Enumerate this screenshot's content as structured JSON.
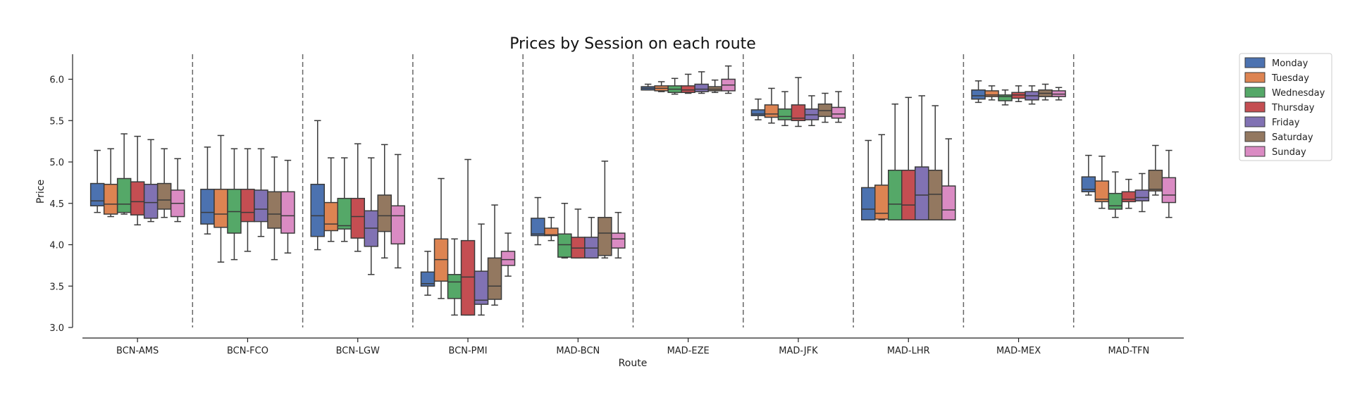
{
  "chart_data": {
    "type": "boxplot",
    "title": "Prices by Session on each route",
    "xlabel": "Route",
    "ylabel": "Price",
    "ylim": [
      3.0,
      6.25
    ],
    "yticks": [
      3.0,
      3.5,
      4.0,
      4.5,
      5.0,
      5.5,
      6.0
    ],
    "categories": [
      "BCN-AMS",
      "BCN-FCO",
      "BCN-LGW",
      "BCN-PMI",
      "MAD-BCN",
      "MAD-EZE",
      "MAD-JFK",
      "MAD-LHR",
      "MAD-MEX",
      "MAD-TFN"
    ],
    "grid": false,
    "legend": "outside-top-right",
    "separators": "dashed vertical lines between routes",
    "series": [
      {
        "name": "Monday",
        "color": "#4c72b0",
        "boxes": [
          {
            "whislo": 4.39,
            "q1": 4.47,
            "med": 4.53,
            "q3": 4.74,
            "whishi": 5.14
          },
          {
            "whislo": 4.13,
            "q1": 4.25,
            "med": 4.39,
            "q3": 4.67,
            "whishi": 5.18
          },
          {
            "whislo": 3.94,
            "q1": 4.1,
            "med": 4.35,
            "q3": 4.73,
            "whishi": 5.5
          },
          {
            "whislo": 3.39,
            "q1": 3.5,
            "med": 3.53,
            "q3": 3.67,
            "whishi": 3.92
          },
          {
            "whislo": 4.0,
            "q1": 4.11,
            "med": 4.13,
            "q3": 4.32,
            "whishi": 4.57
          },
          {
            "whislo": 5.87,
            "q1": 5.87,
            "med": 5.89,
            "q3": 5.91,
            "whishi": 5.94
          },
          {
            "whislo": 5.51,
            "q1": 5.56,
            "med": 5.58,
            "q3": 5.63,
            "whishi": 5.76
          },
          {
            "whislo": 4.3,
            "q1": 4.3,
            "med": 4.43,
            "q3": 4.69,
            "whishi": 5.26
          },
          {
            "whislo": 5.72,
            "q1": 5.76,
            "med": 5.8,
            "q3": 5.87,
            "whishi": 5.98
          },
          {
            "whislo": 4.6,
            "q1": 4.64,
            "med": 4.67,
            "q3": 4.82,
            "whishi": 5.08
          }
        ]
      },
      {
        "name": "Tuesday",
        "color": "#dd8452",
        "boxes": [
          {
            "whislo": 4.34,
            "q1": 4.37,
            "med": 4.49,
            "q3": 4.73,
            "whishi": 5.16
          },
          {
            "whislo": 3.79,
            "q1": 4.21,
            "med": 4.37,
            "q3": 4.67,
            "whishi": 5.32
          },
          {
            "whislo": 4.04,
            "q1": 4.17,
            "med": 4.25,
            "q3": 4.51,
            "whishi": 5.05
          },
          {
            "whislo": 3.35,
            "q1": 3.56,
            "med": 3.82,
            "q3": 4.07,
            "whishi": 4.8
          },
          {
            "whislo": 4.05,
            "q1": 4.11,
            "med": 4.12,
            "q3": 4.2,
            "whishi": 4.33
          },
          {
            "whislo": 5.85,
            "q1": 5.86,
            "med": 5.89,
            "q3": 5.92,
            "whishi": 5.97
          },
          {
            "whislo": 5.47,
            "q1": 5.54,
            "med": 5.58,
            "q3": 5.69,
            "whishi": 5.89
          },
          {
            "whislo": 4.3,
            "q1": 4.31,
            "med": 4.38,
            "q3": 4.72,
            "whishi": 5.33
          },
          {
            "whislo": 5.75,
            "q1": 5.79,
            "med": 5.81,
            "q3": 5.86,
            "whishi": 5.92
          },
          {
            "whislo": 4.44,
            "q1": 4.52,
            "med": 4.55,
            "q3": 4.77,
            "whishi": 5.07
          }
        ]
      },
      {
        "name": "Wednesday",
        "color": "#55a868",
        "boxes": [
          {
            "whislo": 4.37,
            "q1": 4.39,
            "med": 4.49,
            "q3": 4.8,
            "whishi": 5.34
          },
          {
            "whislo": 3.82,
            "q1": 4.14,
            "med": 4.4,
            "q3": 4.67,
            "whishi": 5.16
          },
          {
            "whislo": 4.04,
            "q1": 4.19,
            "med": 4.23,
            "q3": 4.56,
            "whishi": 5.05
          },
          {
            "whislo": 3.15,
            "q1": 3.35,
            "med": 3.55,
            "q3": 3.64,
            "whishi": 4.07
          },
          {
            "whislo": 3.84,
            "q1": 3.85,
            "med": 4.0,
            "q3": 4.13,
            "whishi": 4.5
          },
          {
            "whislo": 5.82,
            "q1": 5.84,
            "med": 5.88,
            "q3": 5.92,
            "whishi": 6.01
          },
          {
            "whislo": 5.44,
            "q1": 5.51,
            "med": 5.55,
            "q3": 5.64,
            "whishi": 5.85
          },
          {
            "whislo": 4.3,
            "q1": 4.3,
            "med": 4.49,
            "q3": 4.9,
            "whishi": 5.7
          },
          {
            "whislo": 5.69,
            "q1": 5.74,
            "med": 5.79,
            "q3": 5.81,
            "whishi": 5.87
          },
          {
            "whislo": 4.33,
            "q1": 4.43,
            "med": 4.47,
            "q3": 4.62,
            "whishi": 4.88
          }
        ]
      },
      {
        "name": "Thursday",
        "color": "#c44e52",
        "boxes": [
          {
            "whislo": 4.24,
            "q1": 4.36,
            "med": 4.52,
            "q3": 4.76,
            "whishi": 5.31
          },
          {
            "whislo": 3.92,
            "q1": 4.28,
            "med": 4.39,
            "q3": 4.67,
            "whishi": 5.16
          },
          {
            "whislo": 3.92,
            "q1": 4.08,
            "med": 4.34,
            "q3": 4.56,
            "whishi": 5.22
          },
          {
            "whislo": 3.15,
            "q1": 3.15,
            "med": 3.61,
            "q3": 4.05,
            "whishi": 5.03
          },
          {
            "whislo": 3.84,
            "q1": 3.84,
            "med": 3.96,
            "q3": 4.09,
            "whishi": 4.43
          },
          {
            "whislo": 5.83,
            "q1": 5.84,
            "med": 5.87,
            "q3": 5.92,
            "whishi": 6.06
          },
          {
            "whislo": 5.43,
            "q1": 5.5,
            "med": 5.53,
            "q3": 5.69,
            "whishi": 6.02
          },
          {
            "whislo": 4.3,
            "q1": 4.3,
            "med": 4.48,
            "q3": 4.9,
            "whishi": 5.78
          },
          {
            "whislo": 5.73,
            "q1": 5.77,
            "med": 5.81,
            "q3": 5.84,
            "whishi": 5.92
          },
          {
            "whislo": 4.44,
            "q1": 4.52,
            "med": 4.55,
            "q3": 4.64,
            "whishi": 4.79
          }
        ]
      },
      {
        "name": "Friday",
        "color": "#8172b3",
        "boxes": [
          {
            "whislo": 4.28,
            "q1": 4.32,
            "med": 4.51,
            "q3": 4.73,
            "whishi": 5.27
          },
          {
            "whislo": 4.1,
            "q1": 4.28,
            "med": 4.43,
            "q3": 4.66,
            "whishi": 5.16
          },
          {
            "whislo": 3.64,
            "q1": 3.98,
            "med": 4.2,
            "q3": 4.41,
            "whishi": 5.05
          },
          {
            "whislo": 3.15,
            "q1": 3.28,
            "med": 3.33,
            "q3": 3.68,
            "whishi": 4.25
          },
          {
            "whislo": 3.84,
            "q1": 3.84,
            "med": 3.96,
            "q3": 4.09,
            "whishi": 4.33
          },
          {
            "whislo": 5.83,
            "q1": 5.85,
            "med": 5.88,
            "q3": 5.94,
            "whishi": 6.09
          },
          {
            "whislo": 5.44,
            "q1": 5.51,
            "med": 5.57,
            "q3": 5.64,
            "whishi": 5.8
          },
          {
            "whislo": 4.3,
            "q1": 4.3,
            "med": 4.6,
            "q3": 4.94,
            "whishi": 5.8
          },
          {
            "whislo": 5.7,
            "q1": 5.75,
            "med": 5.8,
            "q3": 5.85,
            "whishi": 5.92
          },
          {
            "whislo": 4.4,
            "q1": 4.53,
            "med": 4.57,
            "q3": 4.66,
            "whishi": 4.86
          }
        ]
      },
      {
        "name": "Saturday",
        "color": "#937860",
        "boxes": [
          {
            "whislo": 4.33,
            "q1": 4.43,
            "med": 4.54,
            "q3": 4.74,
            "whishi": 5.16
          },
          {
            "whislo": 3.82,
            "q1": 4.2,
            "med": 4.37,
            "q3": 4.64,
            "whishi": 5.06
          },
          {
            "whislo": 3.84,
            "q1": 4.16,
            "med": 4.35,
            "q3": 4.6,
            "whishi": 5.21
          },
          {
            "whislo": 3.27,
            "q1": 3.34,
            "med": 3.5,
            "q3": 3.84,
            "whishi": 4.48
          },
          {
            "whislo": 3.84,
            "q1": 3.87,
            "med": 4.14,
            "q3": 4.33,
            "whishi": 5.01
          },
          {
            "whislo": 5.84,
            "q1": 5.86,
            "med": 5.88,
            "q3": 5.91,
            "whishi": 5.99
          },
          {
            "whislo": 5.48,
            "q1": 5.55,
            "med": 5.62,
            "q3": 5.7,
            "whishi": 5.83
          },
          {
            "whislo": 4.3,
            "q1": 4.3,
            "med": 4.61,
            "q3": 4.9,
            "whishi": 5.68
          },
          {
            "whislo": 5.75,
            "q1": 5.79,
            "med": 5.83,
            "q3": 5.87,
            "whishi": 5.94
          },
          {
            "whislo": 4.6,
            "q1": 4.65,
            "med": 4.67,
            "q3": 4.9,
            "whishi": 5.2
          }
        ]
      },
      {
        "name": "Sunday",
        "color": "#da8bc3",
        "boxes": [
          {
            "whislo": 4.28,
            "q1": 4.34,
            "med": 4.5,
            "q3": 4.66,
            "whishi": 5.04
          },
          {
            "whislo": 3.9,
            "q1": 4.14,
            "med": 4.35,
            "q3": 4.64,
            "whishi": 5.02
          },
          {
            "whislo": 3.72,
            "q1": 4.01,
            "med": 4.35,
            "q3": 4.47,
            "whishi": 5.09
          },
          {
            "whislo": 3.62,
            "q1": 3.75,
            "med": 3.82,
            "q3": 3.92,
            "whishi": 4.14
          },
          {
            "whislo": 3.84,
            "q1": 3.96,
            "med": 4.07,
            "q3": 4.14,
            "whishi": 4.39
          },
          {
            "whislo": 5.83,
            "q1": 5.86,
            "med": 5.93,
            "q3": 6.0,
            "whishi": 6.16
          },
          {
            "whislo": 5.48,
            "q1": 5.53,
            "med": 5.58,
            "q3": 5.66,
            "whishi": 5.85
          },
          {
            "whislo": 4.3,
            "q1": 4.3,
            "med": 4.42,
            "q3": 4.71,
            "whishi": 5.28
          },
          {
            "whislo": 5.75,
            "q1": 5.79,
            "med": 5.82,
            "q3": 5.86,
            "whishi": 5.9
          },
          {
            "whislo": 4.33,
            "q1": 4.51,
            "med": 4.6,
            "q3": 4.81,
            "whishi": 5.14
          }
        ]
      }
    ]
  }
}
